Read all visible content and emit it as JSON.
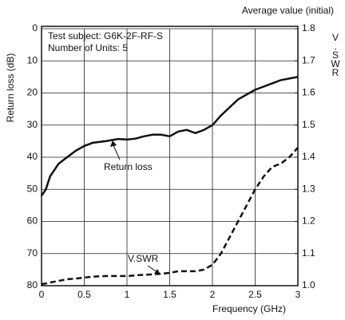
{
  "chart_data": {
    "type": "line",
    "annotations": [
      "Average value (initial)",
      "Test subject: G6K-2F-RF-S",
      "Number of Units: 5"
    ],
    "x_label": "Frequency (GHz)",
    "y_label": "Return loss (dB)",
    "y2_label": "V.SWR",
    "x": [
      0,
      0.05,
      0.1,
      0.2,
      0.3,
      0.4,
      0.5,
      0.6,
      0.75,
      0.9,
      1.0,
      1.1,
      1.2,
      1.3,
      1.4,
      1.5,
      1.6,
      1.7,
      1.8,
      1.9,
      2.0,
      2.1,
      2.2,
      2.3,
      2.4,
      2.5,
      2.6,
      2.7,
      2.8,
      2.9,
      3.0
    ],
    "series": [
      {
        "name": "Return loss",
        "color": "#111111",
        "dash": false,
        "values": [
          52,
          50,
          46,
          42,
          40,
          38,
          36.5,
          35.5,
          35,
          34.3,
          34.5,
          34.2,
          33.5,
          33,
          33,
          33.5,
          32,
          31.5,
          32.5,
          31.5,
          30,
          27,
          24.5,
          22,
          20.5,
          19,
          18,
          17,
          16,
          15.5,
          15
        ]
      },
      {
        "name": "V.SWR",
        "color": "#111111",
        "dash": true,
        "axis": "y2",
        "values": [
          1.005,
          1.007,
          1.01,
          1.015,
          1.02,
          1.022,
          1.025,
          1.028,
          1.03,
          1.03,
          1.03,
          1.032,
          1.034,
          1.035,
          1.037,
          1.04,
          1.045,
          1.045,
          1.045,
          1.05,
          1.065,
          1.1,
          1.15,
          1.2,
          1.25,
          1.3,
          1.34,
          1.37,
          1.38,
          1.4,
          1.43
        ]
      }
    ],
    "xlim": [
      0,
      3
    ],
    "xticks": [
      0,
      0.5,
      1,
      1.5,
      2,
      2.5,
      3
    ],
    "ylim": [
      0,
      80
    ],
    "y_reversed": true,
    "yticks": [
      0,
      10,
      20,
      30,
      40,
      50,
      60,
      70,
      80
    ],
    "y2lim": [
      1.0,
      1.8
    ],
    "y2ticks": [
      {
        "value": 1.0,
        "label": "1.0"
      },
      {
        "value": 1.1,
        "label": "1.1"
      },
      {
        "value": 1.2,
        "label": "1.2"
      },
      {
        "value": 1.3,
        "label": "1.3"
      },
      {
        "value": 1.4,
        "label": "1.4"
      },
      {
        "value": 1.5,
        "label": "1.5"
      },
      {
        "value": 1.6,
        "label": "1.6"
      },
      {
        "value": 1.7,
        "label": "1.7"
      },
      {
        "value": 1.8,
        "label": "1.8"
      }
    ],
    "grid": true
  }
}
